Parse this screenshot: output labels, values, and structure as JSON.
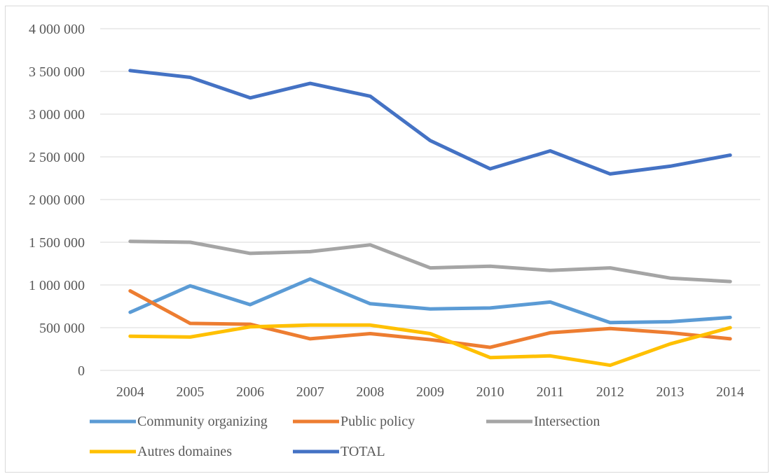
{
  "chart_data": {
    "type": "line",
    "title": "",
    "xlabel": "",
    "ylabel": "",
    "categories": [
      "2004",
      "2005",
      "2006",
      "2007",
      "2008",
      "2009",
      "2010",
      "2011",
      "2012",
      "2013",
      "2014"
    ],
    "ylim": [
      0,
      4000000
    ],
    "ytick_values": [
      0,
      500000,
      1000000,
      1500000,
      2000000,
      2500000,
      3000000,
      3500000,
      4000000
    ],
    "ytick_labels": [
      "0",
      "500 000",
      "1 000 000",
      "1 500 000",
      "2 000 000",
      "2 500 000",
      "3 000 000",
      "3 500 000",
      "4 000 000"
    ],
    "grid": true,
    "legend_position": "bottom",
    "series": [
      {
        "name": "Community organizing",
        "color": "#5b9bd5",
        "values": [
          680000,
          990000,
          770000,
          1070000,
          780000,
          720000,
          730000,
          800000,
          560000,
          570000,
          620000
        ]
      },
      {
        "name": "Public policy",
        "color": "#ed7d31",
        "values": [
          930000,
          550000,
          540000,
          370000,
          430000,
          360000,
          270000,
          440000,
          490000,
          440000,
          370000
        ]
      },
      {
        "name": "Intersection",
        "color": "#a5a5a5",
        "values": [
          1510000,
          1500000,
          1370000,
          1390000,
          1470000,
          1200000,
          1220000,
          1170000,
          1200000,
          1080000,
          1040000
        ]
      },
      {
        "name": "Autres domaines",
        "color": "#ffc000",
        "values": [
          400000,
          390000,
          510000,
          530000,
          530000,
          430000,
          150000,
          170000,
          60000,
          310000,
          500000
        ]
      },
      {
        "name": "TOTAL",
        "color": "#4472c4",
        "values": [
          3510000,
          3430000,
          3190000,
          3360000,
          3210000,
          2690000,
          2360000,
          2570000,
          2300000,
          2390000,
          2520000
        ]
      }
    ]
  }
}
